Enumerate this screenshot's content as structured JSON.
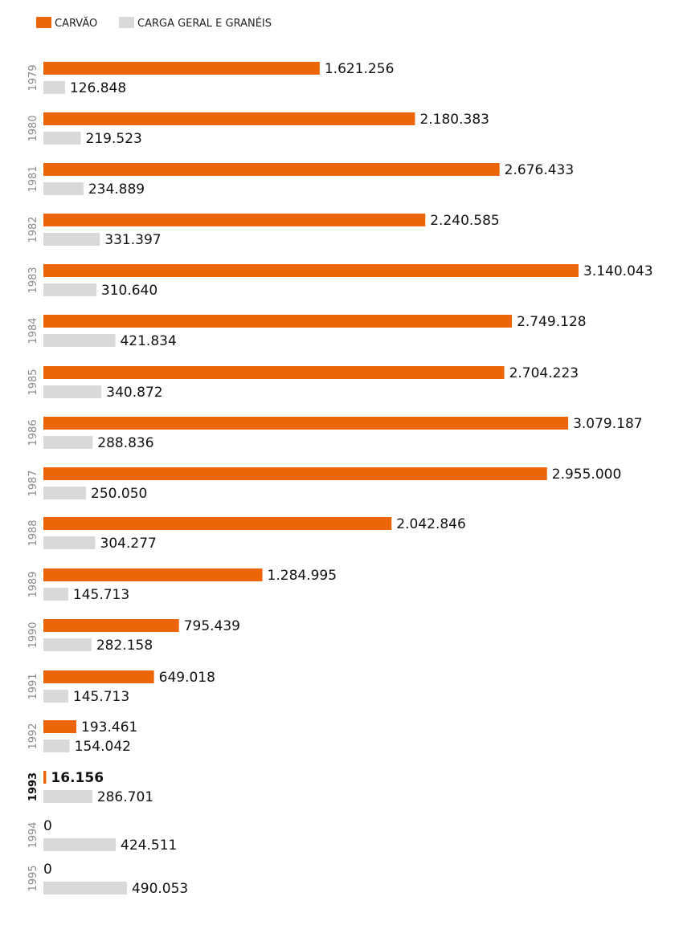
{
  "chart_data": {
    "type": "bar",
    "orientation": "horizontal",
    "title": "",
    "xlabel": "",
    "ylabel": "",
    "grid": false,
    "legend_position": "top-left",
    "highlight_category": "1993",
    "categories": [
      "1979",
      "1980",
      "1981",
      "1982",
      "1983",
      "1984",
      "1985",
      "1986",
      "1987",
      "1988",
      "1989",
      "1990",
      "1991",
      "1992",
      "1993",
      "1994",
      "1995"
    ],
    "series": [
      {
        "name": "CARVÃO",
        "color": "#ec6608",
        "values": [
          1621256,
          2180383,
          2676433,
          2240585,
          3140043,
          2749128,
          2704223,
          3079187,
          2955000,
          2042846,
          1284995,
          795439,
          649018,
          193461,
          16156,
          0,
          0
        ],
        "labels": [
          "1.621.256",
          "2.180.383",
          "2.676.433",
          "2.240.585",
          "3.140.043",
          "2.749.128",
          "2.704.223",
          "3.079.187",
          "2.955.000",
          "2.042.846",
          "1.284.995",
          "795.439",
          "649.018",
          "193.461",
          "16.156",
          "0",
          "0"
        ]
      },
      {
        "name": "CARGA GERAL E GRANÉIS",
        "color": "#d9d9d9",
        "values": [
          126848,
          219523,
          234889,
          331397,
          310640,
          421834,
          340872,
          288836,
          250050,
          304277,
          145713,
          282158,
          145713,
          154042,
          286701,
          424511,
          490053
        ],
        "labels": [
          "126.848",
          "219.523",
          "234.889",
          "331.397",
          "310.640",
          "421.834",
          "340.872",
          "288.836",
          "250.050",
          "304.277",
          "145.713",
          "282.158",
          "145.713",
          "154.042",
          "286.701",
          "424.511",
          "490.053"
        ]
      }
    ],
    "xlim": [
      0,
      3140043
    ]
  }
}
